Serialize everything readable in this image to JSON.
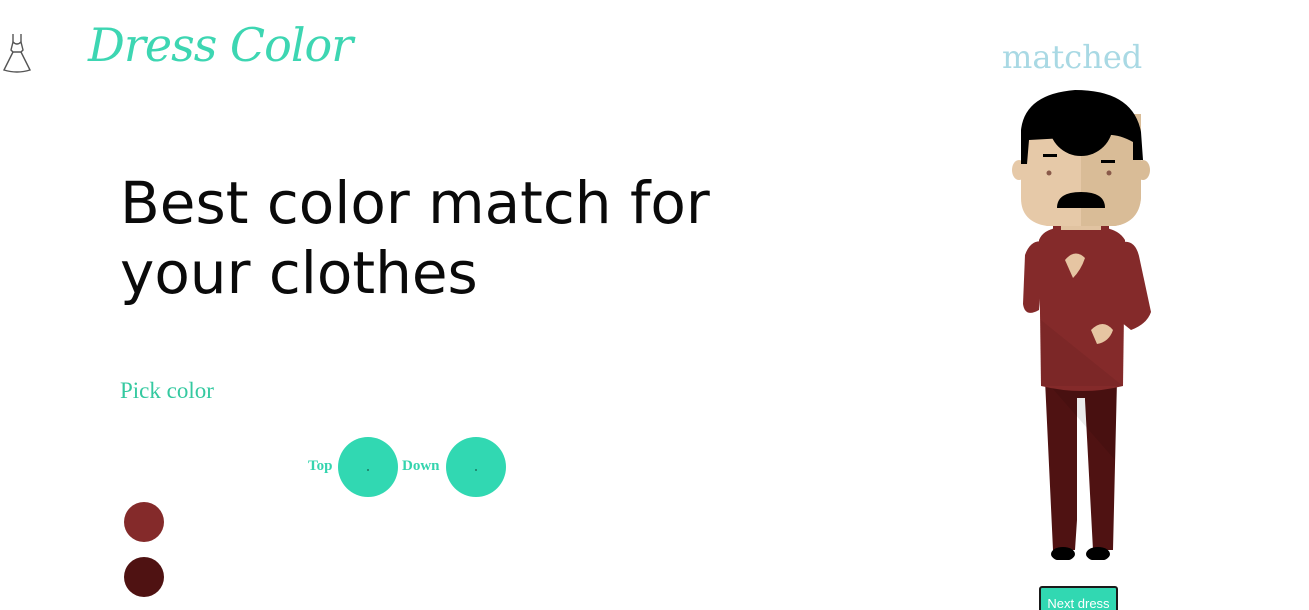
{
  "brand": {
    "name": "Dress Color",
    "logo_icon": "dress-icon"
  },
  "hero": {
    "headline": "Best color match for your clothes"
  },
  "picker": {
    "label": "Pick color",
    "top_label": "Top",
    "down_label": "Down",
    "top_color": "#31d8b2",
    "down_color": "#31d8b2",
    "swatches": [
      {
        "color": "#842a2a"
      },
      {
        "color": "#4f1212"
      }
    ]
  },
  "preview": {
    "status": "matched",
    "top_color": "#842a2a",
    "bottom_color": "#4f1212"
  },
  "actions": {
    "next_label": "Next dress"
  },
  "colors": {
    "accent": "#31d8b2",
    "status": "#a9d9e4"
  }
}
